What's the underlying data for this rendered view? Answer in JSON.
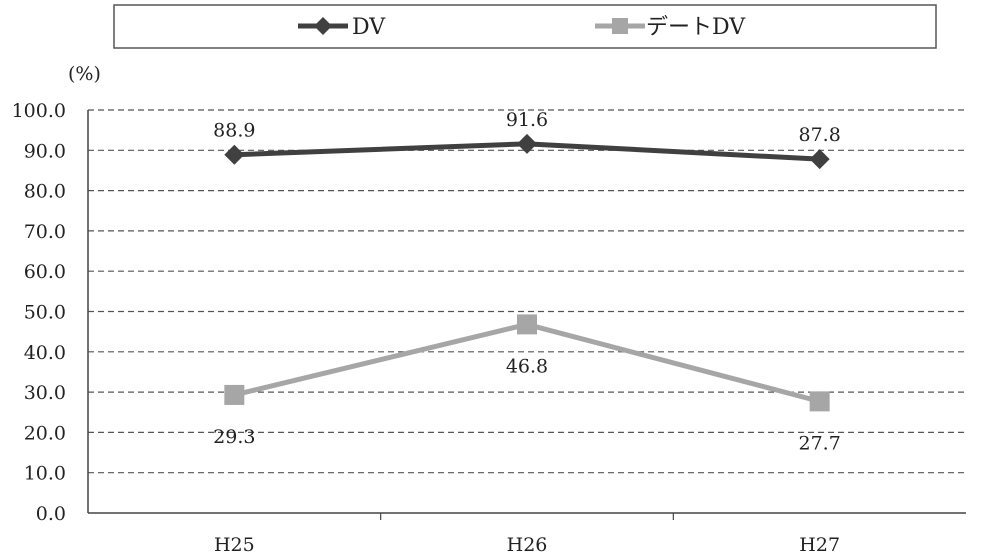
{
  "chart_data": {
    "type": "line",
    "unit_label": "(%)",
    "categories": [
      "H25",
      "H26",
      "H27"
    ],
    "ylim": [
      0,
      100
    ],
    "ytick_labels": [
      "0.0",
      "10.0",
      "20.0",
      "30.0",
      "40.0",
      "50.0",
      "60.0",
      "70.0",
      "80.0",
      "90.0",
      "100.0"
    ],
    "grid": true,
    "legend_position": "top",
    "series": [
      {
        "name": "DV",
        "values": [
          88.9,
          91.6,
          87.8
        ],
        "labels": [
          "88.9",
          "91.6",
          "87.8"
        ],
        "color": "#404040",
        "marker": "diamond"
      },
      {
        "name": "デートDV",
        "values": [
          29.3,
          46.8,
          27.7
        ],
        "labels": [
          "29.3",
          "46.8",
          "27.7"
        ],
        "color": "#a6a6a6",
        "marker": "square"
      }
    ]
  }
}
